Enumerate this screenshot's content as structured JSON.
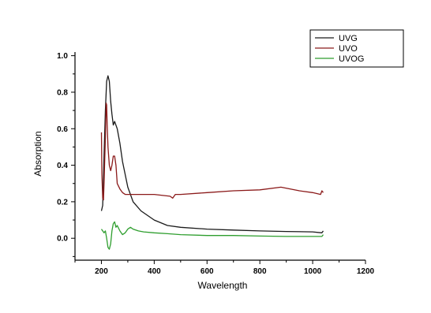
{
  "chart_data": {
    "type": "line",
    "title": "",
    "xlabel": "Wavelength",
    "ylabel": "Absorption",
    "xlim": [
      100,
      1200
    ],
    "ylim": [
      -0.12,
      1.02
    ],
    "x_ticks": [
      200,
      400,
      600,
      800,
      1000,
      1200
    ],
    "y_ticks": [
      0.0,
      0.2,
      0.4,
      0.6,
      0.8,
      1.0
    ],
    "x_tick_labels": [
      "200",
      "400",
      "600",
      "800",
      "1000",
      "1200"
    ],
    "y_tick_labels": [
      "0.0",
      "0.2",
      "0.4",
      "0.6",
      "0.8",
      "1.0"
    ],
    "grid": false,
    "legend_position": "top-right",
    "series": [
      {
        "name": "UVG",
        "color": "#1a1a1a",
        "x": [
          200,
          205,
          210,
          215,
          220,
          225,
          230,
          235,
          240,
          245,
          250,
          260,
          270,
          280,
          300,
          320,
          350,
          400,
          450,
          500,
          600,
          700,
          800,
          900,
          1000,
          1035,
          1040
        ],
        "y": [
          0.15,
          0.18,
          0.45,
          0.7,
          0.86,
          0.89,
          0.86,
          0.75,
          0.68,
          0.62,
          0.64,
          0.6,
          0.52,
          0.42,
          0.28,
          0.2,
          0.15,
          0.1,
          0.07,
          0.06,
          0.05,
          0.045,
          0.04,
          0.037,
          0.035,
          0.03,
          0.04
        ]
      },
      {
        "name": "UVO",
        "color": "#8b1a1a",
        "x": [
          200,
          202,
          205,
          208,
          210,
          215,
          218,
          220,
          222,
          225,
          230,
          235,
          240,
          245,
          250,
          255,
          260,
          270,
          280,
          290,
          300,
          350,
          400,
          460,
          470,
          480,
          500,
          600,
          700,
          800,
          880,
          950,
          1000,
          1030,
          1035,
          1040
        ],
        "y": [
          0.58,
          0.35,
          0.22,
          0.21,
          0.3,
          0.55,
          0.74,
          0.73,
          0.62,
          0.5,
          0.4,
          0.37,
          0.4,
          0.45,
          0.45,
          0.4,
          0.3,
          0.27,
          0.25,
          0.24,
          0.24,
          0.24,
          0.24,
          0.23,
          0.22,
          0.24,
          0.24,
          0.25,
          0.26,
          0.265,
          0.28,
          0.26,
          0.25,
          0.24,
          0.26,
          0.25
        ]
      },
      {
        "name": "UVOG",
        "color": "#2e9e2e",
        "x": [
          200,
          205,
          210,
          215,
          220,
          225,
          230,
          235,
          240,
          245,
          250,
          255,
          260,
          270,
          280,
          290,
          300,
          310,
          320,
          340,
          360,
          400,
          450,
          500,
          600,
          700,
          800,
          900,
          1000,
          1035,
          1040
        ],
        "y": [
          0.05,
          0.04,
          0.03,
          0.04,
          0.0,
          -0.05,
          -0.06,
          -0.03,
          0.04,
          0.08,
          0.09,
          0.06,
          0.07,
          0.04,
          0.02,
          0.03,
          0.05,
          0.06,
          0.05,
          0.04,
          0.035,
          0.03,
          0.025,
          0.02,
          0.015,
          0.015,
          0.012,
          0.01,
          0.01,
          0.01,
          0.02
        ]
      }
    ]
  }
}
